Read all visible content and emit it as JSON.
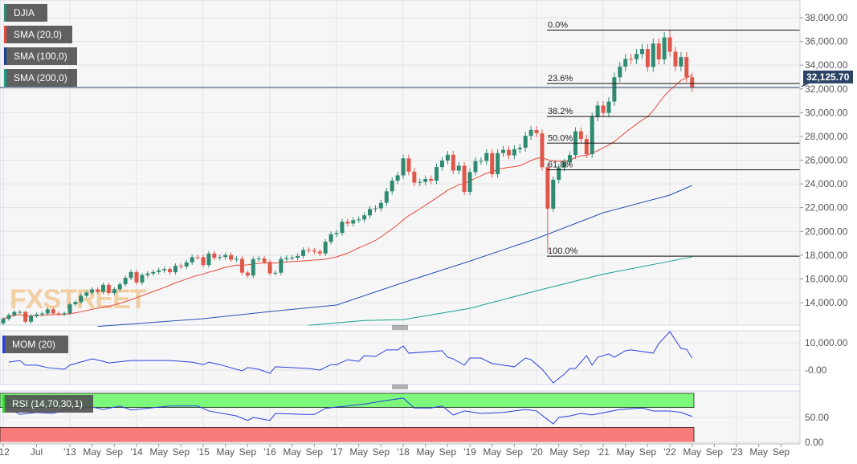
{
  "instrument": "DJIA",
  "indicators": [
    {
      "label": "DJIA",
      "color": "#2f8a72"
    },
    {
      "label": "SMA (20,0)",
      "color": "#e8473a"
    },
    {
      "label": "SMA (100,0)",
      "color": "#1d3f9a"
    },
    {
      "label": "SMA (200,0)",
      "color": "#16a085"
    }
  ],
  "watermark": "FXSTREET",
  "current_price": "32,125.70",
  "colors": {
    "up": "#2f8a72",
    "down": "#e0574a",
    "sma20": "#e8473a",
    "sma100": "#2650b0",
    "sma200": "#17a08a",
    "mom": "#2a3fe0",
    "rsi": "#2a3fe0",
    "overbought": "#7cf97c",
    "oversold": "#f77b7b",
    "price_line": "#2b4466"
  },
  "chart_data": [
    {
      "type": "candlestick",
      "start": "2012-01",
      "interval": "month",
      "closes": [
        12633,
        12952,
        13212,
        13214,
        12393,
        12880,
        13009,
        13090,
        13437,
        13096,
        13025,
        13104,
        13861,
        14054,
        14579,
        14840,
        15116,
        14910,
        15500,
        14810,
        15130,
        15546,
        16086,
        16577,
        15699,
        16322,
        16458,
        16581,
        16717,
        16827,
        16563,
        17098,
        17043,
        17391,
        17828,
        17823,
        17165,
        18133,
        17776,
        17841,
        18011,
        17620,
        17690,
        16528,
        16285,
        17664,
        17720,
        17425,
        16466,
        16517,
        17685,
        17774,
        17787,
        17930,
        18432,
        18401,
        18308,
        18142,
        19124,
        19763,
        19864,
        20812,
        20663,
        20941,
        21009,
        21350,
        21891,
        21948,
        22405,
        23377,
        24272,
        24719,
        26149,
        25029,
        24103,
        24163,
        24416,
        24271,
        25415,
        25965,
        26458,
        25116,
        25538,
        23327,
        24999,
        25916,
        25929,
        26593,
        24815,
        26600,
        26864,
        26403,
        26917,
        27046,
        28051,
        28538,
        28256,
        25409,
        21917,
        24346,
        25383,
        25813,
        26428,
        28430,
        27782,
        26502,
        29638,
        30606,
        29983,
        30932,
        32982,
        33875,
        34529,
        34503,
        34935,
        35361,
        33844,
        35820,
        34484,
        36338,
        35132,
        33893,
        34678,
        32977,
        32126
      ],
      "notable_extremes": {
        "2020-03": {
          "low": 18214
        },
        "2022-01": {
          "high": 36952
        }
      },
      "sma100": [
        [
          "2013-06",
          12000
        ],
        [
          "2015-01",
          12650
        ],
        [
          "2016-01",
          13250
        ],
        [
          "2017-01",
          13800
        ],
        [
          "2018-01",
          15690
        ],
        [
          "2019-01",
          17500
        ],
        [
          "2020-01",
          19400
        ],
        [
          "2021-01",
          21570
        ],
        [
          "2022-01",
          23060
        ],
        [
          "2022-05",
          23870
        ]
      ],
      "sma200": [
        [
          "2016-08",
          12100
        ],
        [
          "2017-06",
          12500
        ],
        [
          "2018-01",
          12570
        ],
        [
          "2019-01",
          13520
        ],
        [
          "2020-01",
          15000
        ],
        [
          "2021-01",
          16400
        ],
        [
          "2022-05",
          17850
        ]
      ],
      "y_ticks": [
        "38,000.00",
        "36,000.00",
        "34,000.00",
        "32,000.00",
        "30,000.00",
        "28,000.00",
        "26,000.00",
        "24,000.00",
        "22,000.00",
        "20,000.00",
        "18,000.00",
        "16,000.00",
        "14,000.00"
      ],
      "ylim": [
        12000,
        39000
      ],
      "fibonacci": [
        {
          "label": "0.0%",
          "value": 36952
        },
        {
          "label": "23.6%",
          "value": 32456
        },
        {
          "label": "38.2%",
          "value": 29675
        },
        {
          "label": "50.0%",
          "value": 27433
        },
        {
          "label": "61.8%",
          "value": 25190
        },
        {
          "label": "100.0%",
          "value": 17914
        }
      ]
    },
    {
      "type": "line",
      "name": "MOM (20)",
      "y_ticks": [
        "10,000.00",
        "-0.00"
      ],
      "points": [
        [
          "2012-02",
          2900
        ],
        [
          "2012-04",
          3500
        ],
        [
          "2012-05",
          1800
        ],
        [
          "2012-07",
          1800
        ],
        [
          "2012-09",
          900
        ],
        [
          "2012-12",
          300
        ],
        [
          "2013-01",
          1800
        ],
        [
          "2013-05",
          4100
        ],
        [
          "2013-07",
          3200
        ],
        [
          "2013-08",
          2600
        ],
        [
          "2013-12",
          3500
        ],
        [
          "2014-07",
          3500
        ],
        [
          "2014-11",
          2900
        ],
        [
          "2015-01",
          2000
        ],
        [
          "2015-02",
          2900
        ],
        [
          "2015-04",
          2000
        ],
        [
          "2015-08",
          -300
        ],
        [
          "2015-09",
          900
        ],
        [
          "2015-11",
          300
        ],
        [
          "2016-01",
          -1200
        ],
        [
          "2016-02",
          1200
        ],
        [
          "2016-08",
          600
        ],
        [
          "2016-10",
          0
        ],
        [
          "2016-12",
          2000
        ],
        [
          "2017-01",
          2000
        ],
        [
          "2017-03",
          3800
        ],
        [
          "2017-05",
          3200
        ],
        [
          "2017-06",
          5300
        ],
        [
          "2017-08",
          5000
        ],
        [
          "2017-10",
          7400
        ],
        [
          "2017-12",
          7400
        ],
        [
          "2018-01",
          8800
        ],
        [
          "2018-02",
          6200
        ],
        [
          "2018-08",
          7100
        ],
        [
          "2018-09",
          4700
        ],
        [
          "2018-10",
          4100
        ],
        [
          "2018-12",
          1800
        ],
        [
          "2019-01",
          4400
        ],
        [
          "2019-03",
          4400
        ],
        [
          "2019-05",
          2400
        ],
        [
          "2019-09",
          1200
        ],
        [
          "2019-11",
          4400
        ],
        [
          "2019-12",
          3800
        ],
        [
          "2020-02",
          300
        ],
        [
          "2020-04",
          -4700
        ],
        [
          "2020-06",
          -1500
        ],
        [
          "2020-07",
          600
        ],
        [
          "2020-08",
          600
        ],
        [
          "2020-10",
          5300
        ],
        [
          "2020-11",
          1800
        ],
        [
          "2020-12",
          4700
        ],
        [
          "2021-02",
          5900
        ],
        [
          "2021-03",
          4700
        ],
        [
          "2021-05",
          7100
        ],
        [
          "2021-06",
          7400
        ],
        [
          "2021-08",
          6800
        ],
        [
          "2021-10",
          6200
        ],
        [
          "2021-11",
          9700
        ],
        [
          "2022-01",
          14100
        ],
        [
          "2022-03",
          7900
        ],
        [
          "2022-04",
          7600
        ],
        [
          "2022-05",
          4400
        ]
      ]
    },
    {
      "type": "line",
      "name": "RSI (14,70,30,1)",
      "y_ticks": [
        "50.00",
        "0.00"
      ],
      "overbought": 70,
      "oversold": 30,
      "points": [
        [
          "2012-02",
          68
        ],
        [
          "2012-04",
          56
        ],
        [
          "2012-07",
          60
        ],
        [
          "2012-10",
          58
        ],
        [
          "2012-12",
          65
        ],
        [
          "2013-01",
          66
        ],
        [
          "2013-05",
          71
        ],
        [
          "2013-07",
          66
        ],
        [
          "2013-10",
          73
        ],
        [
          "2013-12",
          65
        ],
        [
          "2014-07",
          73
        ],
        [
          "2014-12",
          73
        ],
        [
          "2015-02",
          63
        ],
        [
          "2015-07",
          53
        ],
        [
          "2015-09",
          44
        ],
        [
          "2015-10",
          50
        ],
        [
          "2016-01",
          44
        ],
        [
          "2016-02",
          58
        ],
        [
          "2016-07",
          56
        ],
        [
          "2016-09",
          56
        ],
        [
          "2016-11",
          68
        ],
        [
          "2017-01",
          71
        ],
        [
          "2017-03",
          73
        ],
        [
          "2017-06",
          77
        ],
        [
          "2017-10",
          84
        ],
        [
          "2018-01",
          89
        ],
        [
          "2018-03",
          69
        ],
        [
          "2018-06",
          69
        ],
        [
          "2018-08",
          73
        ],
        [
          "2018-10",
          55
        ],
        [
          "2018-12",
          63
        ],
        [
          "2019-03",
          58
        ],
        [
          "2019-07",
          60
        ],
        [
          "2019-11",
          66
        ],
        [
          "2020-01",
          63
        ],
        [
          "2020-04",
          37
        ],
        [
          "2020-05",
          50
        ],
        [
          "2020-07",
          53
        ],
        [
          "2020-09",
          58
        ],
        [
          "2020-11",
          55
        ],
        [
          "2021-04",
          66
        ],
        [
          "2021-08",
          69
        ],
        [
          "2021-10",
          63
        ],
        [
          "2022-01",
          63
        ],
        [
          "2022-03",
          60
        ],
        [
          "2022-05",
          52
        ]
      ]
    }
  ],
  "x_axis": [
    [
      "'12",
      "2012-01"
    ],
    [
      "Jul",
      "2012-07"
    ],
    [
      "'13",
      "2013-01"
    ],
    [
      "May",
      "2013-05"
    ],
    [
      "Sep",
      "2013-09"
    ],
    [
      "'14",
      "2014-01"
    ],
    [
      "May",
      "2014-05"
    ],
    [
      "Sep",
      "2014-09"
    ],
    [
      "'15",
      "2015-01"
    ],
    [
      "May",
      "2015-05"
    ],
    [
      "Sep",
      "2015-09"
    ],
    [
      "'16",
      "2016-01"
    ],
    [
      "May",
      "2016-05"
    ],
    [
      "Sep",
      "2016-09"
    ],
    [
      "'17",
      "2017-01"
    ],
    [
      "May",
      "2017-05"
    ],
    [
      "Sep",
      "2017-09"
    ],
    [
      "'18",
      "2018-01"
    ],
    [
      "May",
      "2018-05"
    ],
    [
      "Sep",
      "2018-09"
    ],
    [
      "'19",
      "2019-01"
    ],
    [
      "May",
      "2019-05"
    ],
    [
      "Sep",
      "2019-09"
    ],
    [
      "'20",
      "2020-01"
    ],
    [
      "May",
      "2020-05"
    ],
    [
      "Sep",
      "2020-09"
    ],
    [
      "'21",
      "2021-01"
    ],
    [
      "May",
      "2021-05"
    ],
    [
      "Sep",
      "2021-09"
    ],
    [
      "'22",
      "2022-01"
    ],
    [
      "May",
      "2022-05"
    ],
    [
      "Sep",
      "2022-09"
    ],
    [
      "'23",
      "2023-01"
    ],
    [
      "May",
      "2023-05"
    ],
    [
      "Sep",
      "2023-09"
    ]
  ]
}
